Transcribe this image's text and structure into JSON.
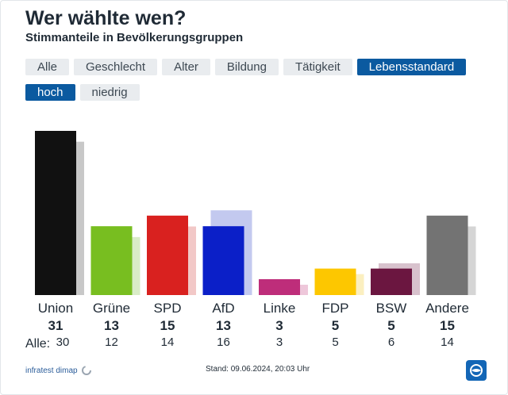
{
  "header": {
    "title": "Wer wählte wen?",
    "subtitle": "Stimmanteile in Bevölkerungsgruppen"
  },
  "tabs": [
    {
      "label": "Alle",
      "active": false
    },
    {
      "label": "Geschlecht",
      "active": false
    },
    {
      "label": "Alter",
      "active": false
    },
    {
      "label": "Bildung",
      "active": false
    },
    {
      "label": "Tätigkeit",
      "active": false
    },
    {
      "label": "Lebensstandard",
      "active": true
    }
  ],
  "subtabs": [
    {
      "label": "hoch",
      "active": true
    },
    {
      "label": "niedrig",
      "active": false
    }
  ],
  "all_label": "Alle:",
  "chart_data": {
    "type": "bar",
    "title": "Wer wählte wen?",
    "subtitle": "Stimmanteile in Bevölkerungsgruppen",
    "categories": [
      "Union",
      "Grüne",
      "SPD",
      "AfD",
      "Linke",
      "FDP",
      "BSW",
      "Andere"
    ],
    "series": [
      {
        "name": "hoch",
        "values": [
          31,
          13,
          15,
          13,
          3,
          5,
          5,
          15
        ]
      },
      {
        "name": "Alle",
        "values": [
          30,
          12,
          14,
          16,
          3,
          5,
          6,
          14
        ]
      }
    ],
    "colors": [
      "#111111",
      "#78be20",
      "#d9211f",
      "#0b1fc8",
      "#be2d7a",
      "#fdc700",
      "#6b1640",
      "#737373"
    ],
    "background_colors": [
      "#c8c8c8",
      "#d9ecc7",
      "#f2c8c7",
      "#c3c9ef",
      "#eec7da",
      "#fbefc0",
      "#d8c2cd",
      "#d5d5d5"
    ],
    "ylim": [
      0,
      31
    ],
    "xlabel": "",
    "ylabel": ""
  },
  "footer": {
    "source": "infratest dimap",
    "stand": "Stand: 09.06.2024, 20:03 Uhr"
  }
}
